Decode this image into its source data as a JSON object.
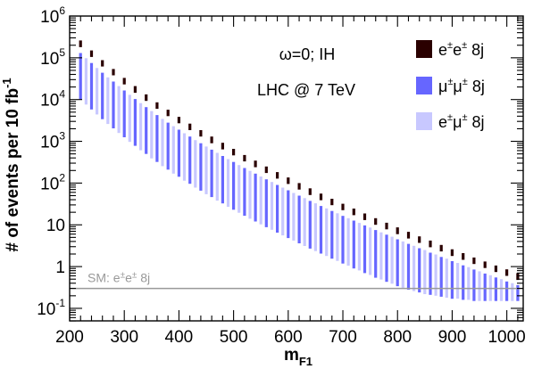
{
  "chart_data": {
    "type": "bar",
    "subtype": "vertical-range-bars",
    "xlabel_main": "m",
    "xlabel_sub": "F1",
    "ylabel_main": "# of events per 10 fb",
    "ylabel_sup": "-1",
    "annotations": [
      "ω=0;  IH",
      "LHC @ 7 TeV"
    ],
    "xlim": [
      200,
      1030
    ],
    "ylim_log10": [
      -1.3,
      6
    ],
    "log_y": true,
    "x_ticks": [
      200,
      300,
      400,
      500,
      600,
      700,
      800,
      900,
      1000
    ],
    "y_ticks": [
      {
        "exp": -1,
        "mantissa": "10",
        "sup": "-1"
      },
      {
        "exp": 0,
        "mantissa": "1",
        "sup": ""
      },
      {
        "exp": 1,
        "mantissa": "10",
        "sup": ""
      },
      {
        "exp": 2,
        "mantissa": "10",
        "sup": "2"
      },
      {
        "exp": 3,
        "mantissa": "10",
        "sup": "3"
      },
      {
        "exp": 4,
        "mantissa": "10",
        "sup": "4"
      },
      {
        "exp": 5,
        "mantissa": "10",
        "sup": "5"
      },
      {
        "exp": 6,
        "mantissa": "10",
        "sup": "6"
      }
    ],
    "legend_position": "top-right",
    "series": [
      {
        "name_base": "e",
        "name_sup1": "±",
        "name_mid": "e",
        "name_sup2": "±",
        "name_tail": " 8j",
        "color": "#2a0000",
        "x": [
          220,
          240,
          260,
          280,
          300,
          320,
          340,
          360,
          380,
          400,
          420,
          440,
          460,
          480,
          500,
          520,
          540,
          560,
          580,
          600,
          620,
          640,
          660,
          680,
          700,
          720,
          740,
          760,
          780,
          800,
          820,
          840,
          860,
          880,
          900,
          920,
          940,
          960,
          980,
          1000,
          1020
        ],
        "y_low": [
          180000,
          105000,
          62000,
          38000,
          23000,
          14500,
          9300,
          6000,
          4000,
          2700,
          1850,
          1300,
          900,
          640,
          460,
          330,
          240,
          175,
          128,
          95,
          70,
          52,
          39,
          29.5,
          22.5,
          17,
          13,
          10,
          7.8,
          6,
          4.7,
          3.7,
          2.9,
          2.3,
          1.8,
          1.45,
          1.15,
          0.92,
          0.74,
          0.6,
          0.48
        ],
        "y_high": [
          260000,
          150000,
          88000,
          54000,
          33000,
          21000,
          13300,
          8600,
          5700,
          3850,
          2650,
          1850,
          1300,
          920,
          660,
          470,
          345,
          250,
          183,
          136,
          100,
          75,
          56,
          42,
          32,
          24.5,
          18.7,
          14.4,
          11.2,
          8.7,
          6.8,
          5.3,
          4.2,
          3.3,
          2.6,
          2.1,
          1.65,
          1.32,
          1.06,
          0.86,
          0.7
        ]
      },
      {
        "name_base": "μ",
        "name_sup1": "±",
        "name_mid": "μ",
        "name_sup2": "±",
        "name_tail": " 8j",
        "color": "#6666ff",
        "x": [
          220,
          240,
          260,
          280,
          300,
          320,
          340,
          360,
          380,
          400,
          420,
          440,
          460,
          480,
          500,
          520,
          540,
          560,
          580,
          600,
          620,
          640,
          660,
          680,
          700,
          720,
          740,
          760,
          780,
          800,
          820,
          840,
          860,
          880,
          900,
          920,
          940,
          960,
          980,
          1000,
          1020
        ],
        "y_low": [
          10000,
          5800,
          3400,
          2050,
          1250,
          780,
          500,
          320,
          210,
          142,
          96,
          66,
          46,
          32.5,
          23,
          16.5,
          12,
          8.8,
          6.5,
          4.8,
          3.6,
          2.7,
          2.05,
          1.55,
          1.18,
          0.9,
          0.7,
          0.54,
          0.43,
          0.34,
          0.28,
          0.24,
          0.21,
          0.19,
          0.17,
          0.16,
          0.15,
          0.15,
          0.15,
          0.15,
          0.15
        ],
        "y_high": [
          130000,
          75000,
          44000,
          27000,
          16500,
          10300,
          6600,
          4250,
          2800,
          1900,
          1300,
          900,
          630,
          445,
          320,
          230,
          168,
          123,
          90,
          67,
          50,
          37.5,
          28.3,
          21.5,
          16.4,
          12.6,
          9.7,
          7.5,
          5.8,
          4.5,
          3.5,
          2.75,
          2.15,
          1.7,
          1.35,
          1.07,
          0.85,
          0.68,
          0.55,
          0.44,
          0.36
        ]
      },
      {
        "name_base": "e",
        "name_sup1": "±",
        "name_mid": "μ",
        "name_sup2": "±",
        "name_tail": " 8j",
        "color": "#c8c8ff",
        "x": [
          230,
          250,
          270,
          290,
          310,
          330,
          350,
          370,
          390,
          410,
          430,
          450,
          470,
          490,
          510,
          530,
          550,
          570,
          590,
          610,
          630,
          650,
          670,
          690,
          710,
          730,
          750,
          770,
          790,
          810,
          830,
          850,
          870,
          890,
          910,
          930,
          950,
          970,
          990,
          1010
        ],
        "y_low": [
          7600,
          4400,
          2600,
          1580,
          970,
          610,
          390,
          255,
          168,
          114,
          78,
          54,
          38,
          27,
          19.5,
          14,
          10.3,
          7.6,
          5.6,
          4.2,
          3.1,
          2.35,
          1.8,
          1.37,
          1.05,
          0.81,
          0.63,
          0.49,
          0.39,
          0.31,
          0.26,
          0.22,
          0.2,
          0.18,
          0.17,
          0.16,
          0.15,
          0.15,
          0.15,
          0.15
        ],
        "y_high": [
          98000,
          57000,
          34000,
          21000,
          13000,
          8200,
          5300,
          3450,
          2300,
          1560,
          1070,
          750,
          530,
          375,
          270,
          196,
          144,
          106,
          78,
          58,
          43.5,
          32.8,
          24.8,
          18.9,
          14.4,
          11.1,
          8.6,
          6.6,
          5.2,
          4,
          3.15,
          2.5,
          1.95,
          1.55,
          1.22,
          0.97,
          0.77,
          0.62,
          0.5,
          0.4
        ]
      }
    ],
    "reference_line": {
      "label_prefix": "SM: e",
      "label_sup1": "±",
      "label_mid": "e",
      "label_sup2": "±",
      "label_tail": " 8j",
      "y": 0.3,
      "color": "#999999"
    }
  }
}
